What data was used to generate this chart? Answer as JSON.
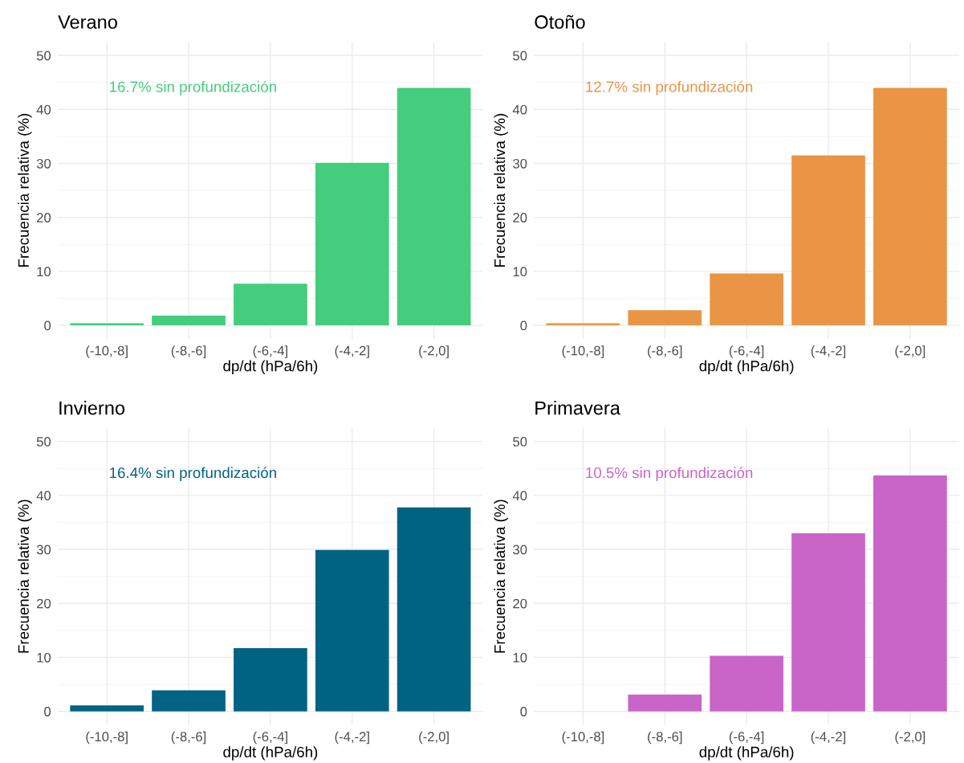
{
  "chart_data": [
    {
      "type": "bar",
      "title": "Verano",
      "xlabel": "dp/dt (hPa/6h)",
      "ylabel": "Frecuencia relativa (%)",
      "categories": [
        "(-10,-8]",
        "(-8,-6]",
        "(-6,-4]",
        "(-4,-2]",
        "(-2,0]"
      ],
      "values": [
        0.4,
        1.8,
        7.7,
        30.1,
        44.0
      ],
      "color": "#43cd7c",
      "annotations": [
        "16.7% sin profundización"
      ],
      "ylim": [
        -2.5,
        52.5
      ],
      "yticks": [
        0,
        10,
        20,
        30,
        40,
        50
      ],
      "grid": true
    },
    {
      "type": "bar",
      "title": "Otoño",
      "xlabel": "dp/dt (hPa/6h)",
      "ylabel": "Frecuencia relativa (%)",
      "categories": [
        "(-10,-8]",
        "(-8,-6]",
        "(-6,-4]",
        "(-4,-2]",
        "(-2,0]"
      ],
      "values": [
        0.4,
        2.8,
        9.6,
        31.5,
        44.0
      ],
      "color": "#e99545",
      "annotations": [
        "12.7% sin profundización"
      ],
      "ylim": [
        -2.5,
        52.5
      ],
      "yticks": [
        0,
        10,
        20,
        30,
        40,
        50
      ],
      "grid": true
    },
    {
      "type": "bar",
      "title": "Invierno",
      "xlabel": "dp/dt (hPa/6h)",
      "ylabel": "Frecuencia relativa (%)",
      "categories": [
        "(-10,-8]",
        "(-8,-6]",
        "(-6,-4]",
        "(-4,-2]",
        "(-2,0]"
      ],
      "values": [
        1.1,
        3.9,
        11.7,
        29.9,
        37.8
      ],
      "color": "#006384",
      "annotations": [
        "16.4% sin profundización"
      ],
      "ylim": [
        -2.5,
        52.5
      ],
      "yticks": [
        0,
        10,
        20,
        30,
        40,
        50
      ],
      "grid": true
    },
    {
      "type": "bar",
      "title": "Primavera",
      "xlabel": "dp/dt (hPa/6h)",
      "ylabel": "Frecuencia relativa (%)",
      "categories": [
        "(-10,-8]",
        "(-8,-6]",
        "(-6,-4]",
        "(-4,-2]",
        "(-2,0]"
      ],
      "values": [
        0,
        3.1,
        10.3,
        33.0,
        43.7
      ],
      "color": "#c964c8",
      "annotations": [
        "10.5% sin profundización"
      ],
      "ylim": [
        -2.5,
        52.5
      ],
      "yticks": [
        0,
        10,
        20,
        30,
        40,
        50
      ],
      "grid": true
    }
  ]
}
